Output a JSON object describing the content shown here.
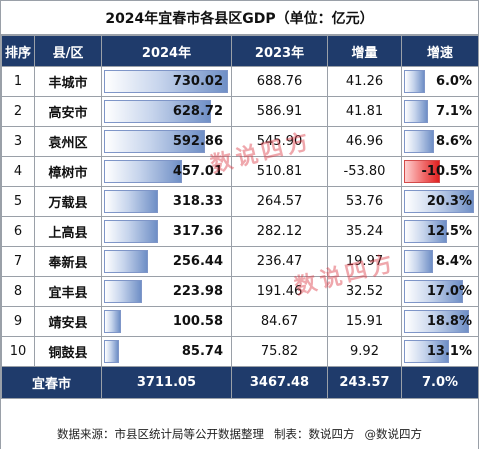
{
  "title": "2024年宜春市各县区GDP（单位：亿元）",
  "headers": {
    "rank": "排序",
    "county": "县/区",
    "gdp_2024": "2024年",
    "gdp_2023": "2023年",
    "increase": "增量",
    "growth_rate": "增速"
  },
  "rows": [
    {
      "rank": "1",
      "county": "丰城市",
      "gdp_2024": "730.02",
      "gdp_2023": "688.76",
      "increase": "41.26",
      "growth_rate": "6.0%",
      "rate_value": 6.0
    },
    {
      "rank": "2",
      "county": "高安市",
      "gdp_2024": "628.72",
      "gdp_2023": "586.91",
      "increase": "41.81",
      "growth_rate": "7.1%",
      "rate_value": 7.1
    },
    {
      "rank": "3",
      "county": "袁州区",
      "gdp_2024": "592.86",
      "gdp_2023": "545.90",
      "increase": "46.96",
      "growth_rate": "8.6%",
      "rate_value": 8.6
    },
    {
      "rank": "4",
      "county": "樟树市",
      "gdp_2024": "457.01",
      "gdp_2023": "510.81",
      "increase": "-53.80",
      "growth_rate": "-10.5%",
      "rate_value": -10.5
    },
    {
      "rank": "5",
      "county": "万载县",
      "gdp_2024": "318.33",
      "gdp_2023": "264.57",
      "increase": "53.76",
      "growth_rate": "20.3%",
      "rate_value": 20.3
    },
    {
      "rank": "6",
      "county": "上高县",
      "gdp_2024": "317.36",
      "gdp_2023": "282.12",
      "increase": "35.24",
      "growth_rate": "12.5%",
      "rate_value": 12.5
    },
    {
      "rank": "7",
      "county": "奉新县",
      "gdp_2024": "256.44",
      "gdp_2023": "236.47",
      "increase": "19.97",
      "growth_rate": "8.4%",
      "rate_value": 8.4
    },
    {
      "rank": "8",
      "county": "宜丰县",
      "gdp_2024": "223.98",
      "gdp_2023": "191.46",
      "increase": "32.52",
      "growth_rate": "17.0%",
      "rate_value": 17.0
    },
    {
      "rank": "9",
      "county": "靖安县",
      "gdp_2024": "100.58",
      "gdp_2023": "84.67",
      "increase": "15.91",
      "growth_rate": "18.8%",
      "rate_value": 18.8
    },
    {
      "rank": "10",
      "county": "铜鼓县",
      "gdp_2024": "85.74",
      "gdp_2023": "75.82",
      "increase": "9.92",
      "growth_rate": "13.1%",
      "rate_value": 13.1
    }
  ],
  "total": {
    "label": "宜春市",
    "gdp_2024": "3711.05",
    "gdp_2023": "3467.48",
    "increase": "243.57",
    "growth_rate": "7.0%"
  },
  "footer": {
    "source": "数据来源：市县区统计局等公开数据整理",
    "maker": "制表：数说四方",
    "brand": "@数说四方"
  },
  "watermark": "数说四方",
  "colors": {
    "header_bg": "#1f3b6b",
    "bar_blue": "#6f8fc6",
    "bar_red": "#e02020"
  }
}
